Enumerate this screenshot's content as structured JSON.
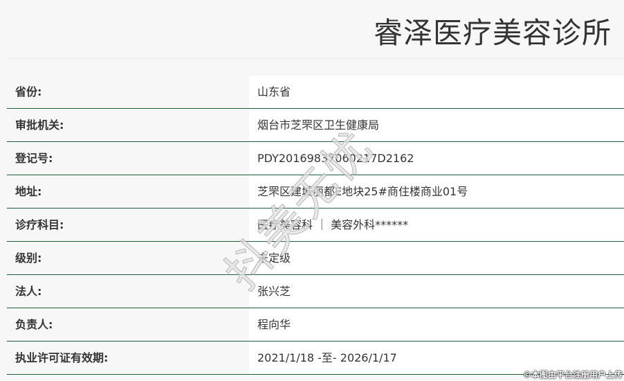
{
  "title": "睿泽医疗美容诊所",
  "rows": [
    {
      "label": "省份:",
      "value": "山东省"
    },
    {
      "label": "审批机关:",
      "value": "烟台市芝罘区卫生健康局"
    },
    {
      "label": "登记号:",
      "value": "PDY20169837060217D2162"
    },
    {
      "label": "地址:",
      "value": "芝罘区建城丽都E地块25#商住楼商业01号"
    },
    {
      "label": "诊疗科目:",
      "value": "医疗美容科 ｜ 美容外科******"
    },
    {
      "label": "级别:",
      "value": "未定级"
    },
    {
      "label": "法人:",
      "value": "张兴芝"
    },
    {
      "label": "负责人:",
      "value": "程向华"
    },
    {
      "label": "执业许可证有效期:",
      "value": "2021/1/18 -至- 2026/1/17"
    }
  ],
  "watermark": "抖美无忧",
  "footer": "©本图由平台注册用户上传"
}
